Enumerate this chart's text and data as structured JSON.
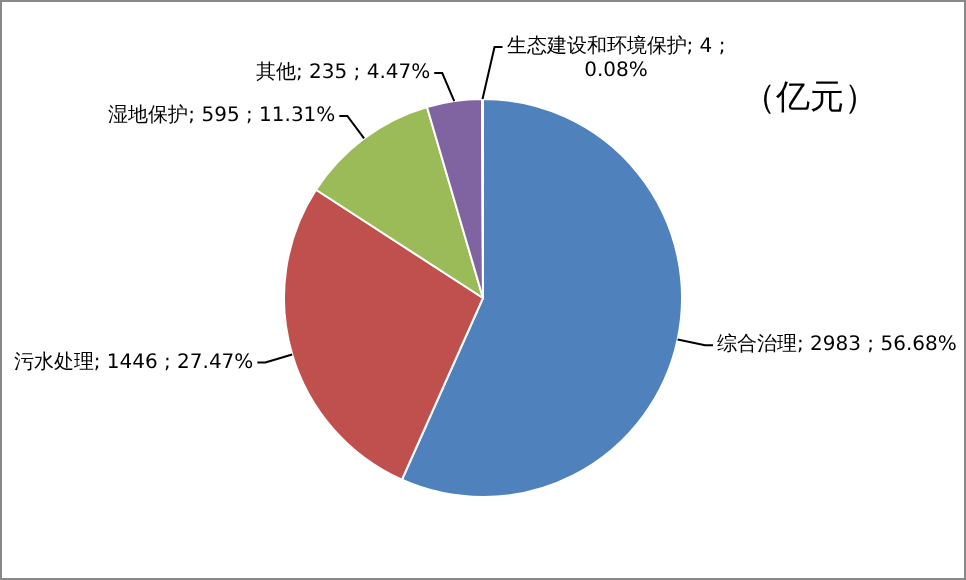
{
  "chart_data": {
    "type": "pie",
    "categories": [
      "综合治理",
      "污水处理",
      "湿地保护",
      "其他",
      "生态建设和环境保护"
    ],
    "values": [
      2983,
      1446,
      595,
      235,
      4
    ],
    "value_labels": [
      "2983 ; 56.68%",
      "1446 ; 27.47%",
      "595 ; 11.31%",
      "235 ; 4.47%",
      "4 ; 0.08%"
    ],
    "colors": [
      "#4f81bd",
      "#c0504d",
      "#9bbb59",
      "#8064a2",
      "#4bacc6"
    ],
    "annotations": [
      "（亿元）"
    ],
    "legend": false
  }
}
